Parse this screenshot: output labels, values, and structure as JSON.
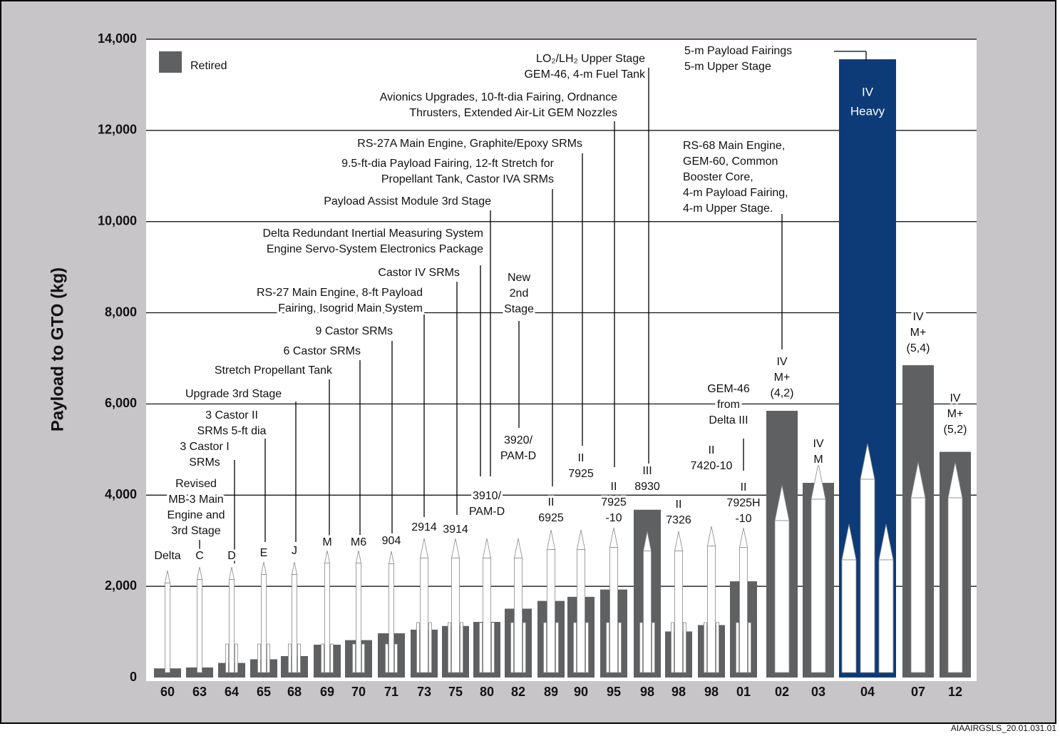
{
  "chart_data": {
    "type": "bar",
    "y_label": "Payload to GTO (kg)",
    "categories": [
      "60",
      "63",
      "64",
      "65",
      "68",
      "69",
      "70",
      "71",
      "73",
      "75",
      "80",
      "82",
      "89",
      "90",
      "95",
      "98",
      "98",
      "98",
      "01",
      "02",
      "03",
      "04",
      "07",
      "12"
    ],
    "values": [
      200,
      220,
      320,
      400,
      470,
      720,
      820,
      970,
      1050,
      1130,
      1220,
      1510,
      1680,
      1770,
      1930,
      3680,
      1010,
      1150,
      2110,
      5850,
      4270,
      13560,
      6850,
      4950
    ],
    "colors": [
      "#5f6062",
      "#5f6062",
      "#5f6062",
      "#5f6062",
      "#5f6062",
      "#5f6062",
      "#5f6062",
      "#5f6062",
      "#5f6062",
      "#5f6062",
      "#5f6062",
      "#5f6062",
      "#5f6062",
      "#5f6062",
      "#5f6062",
      "#5f6062",
      "#5f6062",
      "#5f6062",
      "#5f6062",
      "#5f6062",
      "#5f6062",
      "#0d3b78",
      "#5f6062",
      "#5f6062"
    ],
    "bar_labels": [
      [
        "Delta"
      ],
      [
        "C"
      ],
      [
        "D"
      ],
      [
        "E"
      ],
      [
        "J"
      ],
      [
        "M"
      ],
      [
        "M6"
      ],
      [
        "904"
      ],
      [
        "2914"
      ],
      [
        "3914"
      ],
      [
        "3910/",
        "PAM-D"
      ],
      [
        "3920/",
        "PAM-D"
      ],
      [
        "II",
        "6925"
      ],
      [
        "II",
        "7925"
      ],
      [
        "II",
        "7925",
        "-10"
      ],
      [
        "III",
        "8930"
      ],
      [
        "II",
        "7326"
      ],
      [
        "II",
        "7420-10"
      ],
      [
        "II",
        "7925H",
        "-10"
      ],
      [
        "IV",
        "M+",
        "(4,2)"
      ],
      [
        "IV",
        "M"
      ],
      [
        "IV",
        "Heavy"
      ],
      [
        "IV",
        "M+",
        "(5,4)"
      ],
      [
        "IV",
        "M+",
        "(5,2)"
      ]
    ],
    "annotations": [
      [
        "Revised",
        "MB-3 Main",
        "Engine and",
        "3rd Stage"
      ],
      [
        "3 Castor I",
        "SRMs"
      ],
      [
        "3 Castor II",
        "SRMs 5-ft dia"
      ],
      [
        "Upgrade 3rd Stage"
      ],
      [
        "Stretch Propellant Tank"
      ],
      [
        "6 Castor SRMs"
      ],
      [
        "9 Castor SRMs"
      ],
      [
        "RS-27 Main Engine, 8-ft Payload",
        "Fairing, Isogrid Main System"
      ],
      [
        "Castor IV SRMs"
      ],
      [
        "Delta Redundant Inertial Measuring System",
        "Engine Servo-System Electronics Package"
      ],
      [
        "Payload Assist Module 3rd Stage"
      ],
      [
        "New",
        "2nd",
        "Stage"
      ],
      [
        "9.5-ft-dia Payload Fairing, 12-ft Stretch for",
        "Propellant Tank, Castor IVA SRMs"
      ],
      [
        "RS-27A Main Engine, Graphite/Epoxy SRMs"
      ],
      [
        "Avionics Upgrades, 10-ft-dia Fairing, Ordnance",
        "Thrusters, Extended Air-Lit GEM Nozzles"
      ],
      [
        "LO₂/LH₂ Upper Stage",
        "GEM-46, 4-m Fuel Tank"
      ],
      [
        "5-m Payload Fairings",
        "5-m Upper Stage"
      ],
      [
        "RS-68 Main Engine,",
        "GEM-60, Common",
        "Booster Core,",
        "4-m Payload Fairing,",
        "4-m Upper Stage."
      ],
      [
        "GEM-46",
        "from",
        "Delta III"
      ]
    ],
    "legend": {
      "label": "Retired",
      "color": "#5f6062"
    },
    "ylim": [
      0,
      14000
    ],
    "yticks": [
      0,
      {
        "value": 2000,
        "label": "2,000"
      },
      {
        "value": 4000,
        "label": "4,000"
      },
      {
        "value": 6000,
        "label": "6,000"
      },
      {
        "value": 8000,
        "label": "8,000"
      },
      {
        "value": 10000,
        "label": "10,000"
      },
      {
        "value": 12000,
        "label": "12,000"
      },
      {
        "value": 14000,
        "label": "14,000"
      }
    ],
    "grid": true,
    "footer": "AIAAIRGSLS_20.01.031.01"
  }
}
